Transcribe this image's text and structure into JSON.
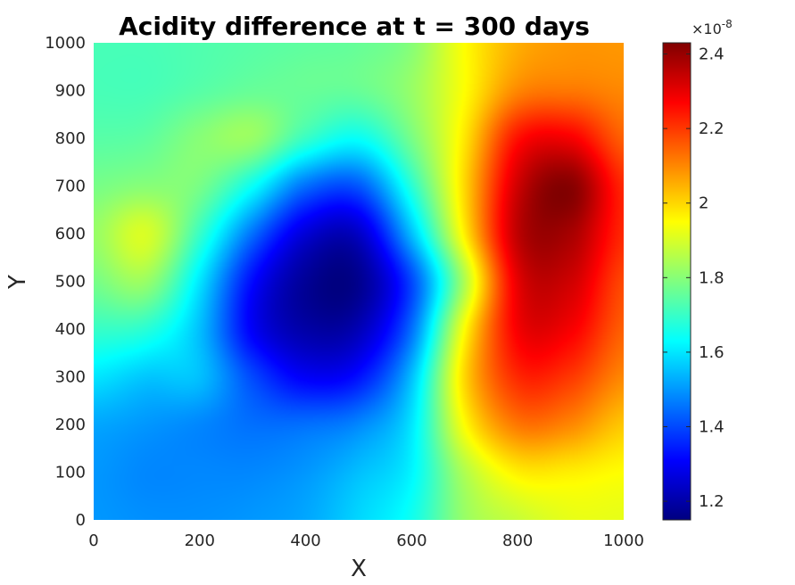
{
  "chart_data": {
    "type": "heatmap",
    "title": "Acidity difference at t = 300 days",
    "xlabel": "X",
    "ylabel": "Y",
    "xlim": [
      0,
      1000
    ],
    "ylim": [
      0,
      1000
    ],
    "x_ticks": [
      0,
      200,
      400,
      600,
      800,
      1000
    ],
    "y_ticks": [
      0,
      100,
      200,
      300,
      400,
      500,
      600,
      700,
      800,
      900,
      1000
    ],
    "colormap": "jet",
    "colorbar": {
      "range": [
        1.15,
        2.43
      ],
      "ticks": [
        "1.2",
        "1.4",
        "1.6",
        "1.8",
        "2",
        "2.2",
        "2.4"
      ],
      "tick_values": [
        1.2,
        1.4,
        1.6,
        1.8,
        2.0,
        2.2,
        2.4
      ],
      "exponent_base": "×10",
      "exponent_power": "-8"
    },
    "grid": false,
    "field_samples": {
      "x": [
        0,
        100,
        200,
        300,
        400,
        500,
        600,
        700,
        800,
        900,
        1000
      ],
      "y": [
        0,
        100,
        200,
        300,
        400,
        500,
        600,
        700,
        800,
        900,
        1000
      ],
      "z": [
        [
          1.5,
          1.49,
          1.49,
          1.5,
          1.52,
          1.58,
          1.65,
          1.82,
          1.88,
          1.92,
          1.92
        ],
        [
          1.5,
          1.48,
          1.48,
          1.48,
          1.5,
          1.55,
          1.62,
          1.85,
          1.97,
          1.97,
          1.95
        ],
        [
          1.52,
          1.5,
          1.48,
          1.45,
          1.45,
          1.48,
          1.6,
          1.95,
          2.12,
          2.1,
          2.02
        ],
        [
          1.6,
          1.56,
          1.55,
          1.4,
          1.3,
          1.33,
          1.55,
          2.0,
          2.22,
          2.2,
          2.1
        ],
        [
          1.7,
          1.68,
          1.55,
          1.3,
          1.2,
          1.22,
          1.45,
          1.95,
          2.28,
          2.28,
          2.15
        ],
        [
          1.78,
          1.82,
          1.6,
          1.32,
          1.18,
          1.17,
          1.4,
          1.85,
          2.3,
          2.33,
          2.18
        ],
        [
          1.82,
          1.9,
          1.7,
          1.45,
          1.26,
          1.24,
          1.55,
          1.97,
          2.35,
          2.38,
          2.22
        ],
        [
          1.78,
          1.8,
          1.78,
          1.64,
          1.45,
          1.42,
          1.68,
          2.0,
          2.33,
          2.42,
          2.22
        ],
        [
          1.74,
          1.75,
          1.8,
          1.82,
          1.7,
          1.64,
          1.78,
          1.98,
          2.25,
          2.28,
          2.15
        ],
        [
          1.72,
          1.72,
          1.74,
          1.76,
          1.76,
          1.76,
          1.82,
          1.95,
          2.1,
          2.12,
          2.1
        ],
        [
          1.72,
          1.72,
          1.73,
          1.74,
          1.75,
          1.76,
          1.8,
          1.95,
          2.05,
          2.08,
          2.08
        ]
      ]
    }
  }
}
